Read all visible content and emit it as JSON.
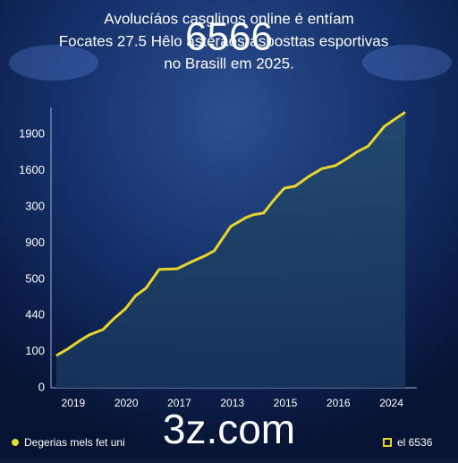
{
  "chart_data": {
    "type": "area",
    "title_lines": [
      "Avolucíáos casglinos online é entíam",
      "Focates 27.5 Hêlo asteraosrasposttas esportivas",
      "no Brasill em 2025."
    ],
    "watermark": "6566",
    "site": "3z.com",
    "x": [
      -0.32,
      -0.12,
      0.13,
      0.3,
      0.56,
      0.78,
      0.98,
      1.18,
      1.37,
      1.62,
      1.96,
      2.24,
      2.5,
      2.66,
      2.97,
      3.25,
      3.39,
      3.59,
      3.76,
      3.98,
      4.18,
      4.44,
      4.69,
      4.94,
      5.19,
      5.36,
      5.56,
      5.87,
      6.12,
      6.26
    ],
    "series": [
      {
        "color": "#e8d52c",
        "values": [
          0.89,
          1.06,
          1.31,
          1.46,
          1.61,
          1.93,
          2.18,
          2.55,
          2.75,
          3.27,
          3.29,
          3.49,
          3.66,
          3.79,
          4.46,
          4.7,
          4.78,
          4.83,
          5.15,
          5.52,
          5.57,
          5.84,
          6.06,
          6.14,
          6.36,
          6.53,
          6.68,
          7.23,
          7.48,
          7.62
        ]
      }
    ],
    "xlim": [
      -0.42,
      6.48
    ],
    "ylim": [
      0,
      7.75
    ],
    "xticks": [
      {
        "value": 0,
        "label": "2019"
      },
      {
        "value": 1,
        "label": "2020"
      },
      {
        "value": 2,
        "label": "2017"
      },
      {
        "value": 3,
        "label": "2013"
      },
      {
        "value": 4,
        "label": "2015"
      },
      {
        "value": 5,
        "label": "2016"
      },
      {
        "value": 6,
        "label": "2024"
      }
    ],
    "yticks": [
      {
        "value": 0,
        "label": "0"
      },
      {
        "value": 1,
        "label": "100"
      },
      {
        "value": 2,
        "label": "440"
      },
      {
        "value": 3,
        "label": "500"
      },
      {
        "value": 4,
        "label": "900"
      },
      {
        "value": 5,
        "label": "300"
      },
      {
        "value": 6,
        "label": "1600"
      },
      {
        "value": 7,
        "label": "1900"
      }
    ],
    "legend_items": [
      {
        "text": "Degerias mels fet uni",
        "color": "#d8e030"
      },
      {
        "text": "el 6536",
        "color": "#e8d52c"
      }
    ]
  }
}
